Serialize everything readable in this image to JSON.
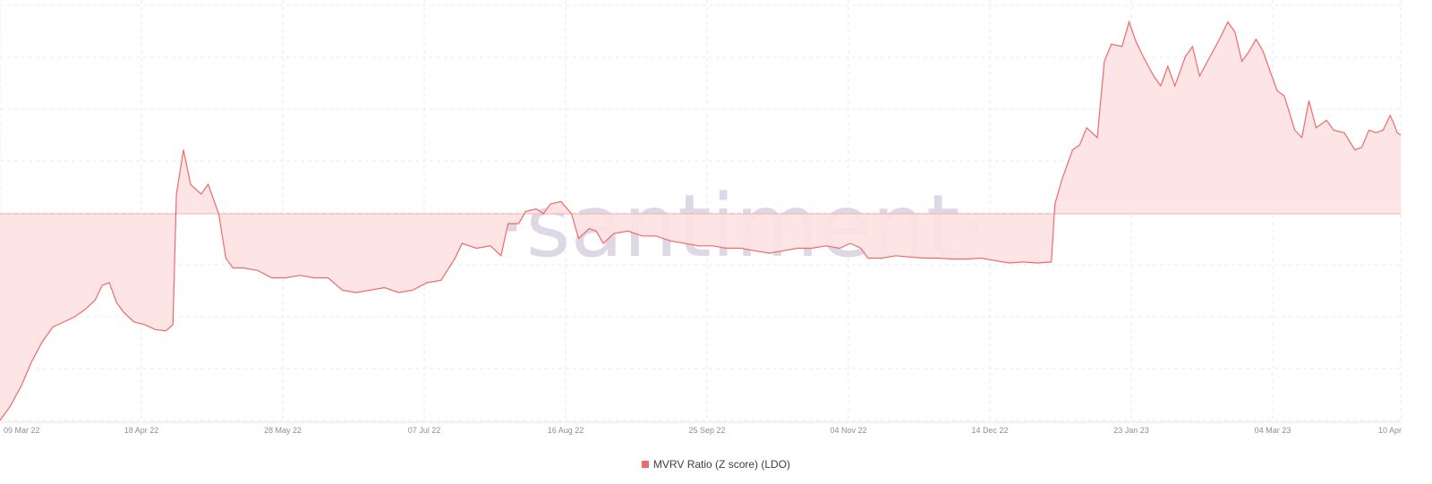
{
  "chart_data": {
    "type": "area",
    "title": "",
    "xlabel": "",
    "ylabel": "",
    "watermark": "·santiment·",
    "baseline_y": 0,
    "ylim": [
      -4.2,
      4.2
    ],
    "x_ticks": [
      "09 Mar 22",
      "18 Apr 22",
      "28 May 22",
      "07 Jul 22",
      "16 Aug 22",
      "25 Sep 22",
      "04 Nov 22",
      "14 Dec 22",
      "23 Jan 23",
      "04 Mar 23",
      "10 Apr"
    ],
    "x_range": [
      "2022-03-09",
      "2023-04-10"
    ],
    "grid": true,
    "legend_position": "bottom-center",
    "series": [
      {
        "name": "MVRV Ratio (Z score) (LDO)",
        "color": "#f06a6a",
        "fill": "#fde2e2",
        "points": [
          [
            "2022-03-09",
            -4.2
          ],
          [
            "2022-03-12",
            -3.9
          ],
          [
            "2022-03-15",
            -3.5
          ],
          [
            "2022-03-18",
            -3.0
          ],
          [
            "2022-03-21",
            -2.6
          ],
          [
            "2022-03-24",
            -2.3
          ],
          [
            "2022-03-27",
            -2.2
          ],
          [
            "2022-03-30",
            -2.1
          ],
          [
            "2022-04-02",
            -1.95
          ],
          [
            "2022-04-05",
            -1.75
          ],
          [
            "2022-04-07",
            -1.45
          ],
          [
            "2022-04-09",
            -1.4
          ],
          [
            "2022-04-11",
            -1.8
          ],
          [
            "2022-04-13",
            -2.0
          ],
          [
            "2022-04-16",
            -2.2
          ],
          [
            "2022-04-19",
            -2.25
          ],
          [
            "2022-04-22",
            -2.35
          ],
          [
            "2022-04-25",
            -2.38
          ],
          [
            "2022-04-27",
            -2.25
          ],
          [
            "2022-04-28",
            0.4
          ],
          [
            "2022-04-30",
            1.3
          ],
          [
            "2022-05-02",
            0.6
          ],
          [
            "2022-05-05",
            0.4
          ],
          [
            "2022-05-07",
            0.6
          ],
          [
            "2022-05-10",
            0.0
          ],
          [
            "2022-05-12",
            -0.9
          ],
          [
            "2022-05-14",
            -1.1
          ],
          [
            "2022-05-17",
            -1.1
          ],
          [
            "2022-05-21",
            -1.15
          ],
          [
            "2022-05-25",
            -1.3
          ],
          [
            "2022-05-29",
            -1.3
          ],
          [
            "2022-06-02",
            -1.25
          ],
          [
            "2022-06-06",
            -1.3
          ],
          [
            "2022-06-10",
            -1.3
          ],
          [
            "2022-06-14",
            -1.55
          ],
          [
            "2022-06-18",
            -1.6
          ],
          [
            "2022-06-22",
            -1.55
          ],
          [
            "2022-06-26",
            -1.5
          ],
          [
            "2022-06-30",
            -1.6
          ],
          [
            "2022-07-04",
            -1.55
          ],
          [
            "2022-07-08",
            -1.4
          ],
          [
            "2022-07-12",
            -1.35
          ],
          [
            "2022-07-16",
            -0.9
          ],
          [
            "2022-07-18",
            -0.6
          ],
          [
            "2022-07-22",
            -0.7
          ],
          [
            "2022-07-26",
            -0.65
          ],
          [
            "2022-07-29",
            -0.85
          ],
          [
            "2022-07-31",
            -0.2
          ],
          [
            "2022-08-03",
            -0.2
          ],
          [
            "2022-08-05",
            0.05
          ],
          [
            "2022-08-08",
            0.1
          ],
          [
            "2022-08-10",
            0.0
          ],
          [
            "2022-08-12",
            0.2
          ],
          [
            "2022-08-15",
            0.25
          ],
          [
            "2022-08-18",
            0.0
          ],
          [
            "2022-08-20",
            -0.5
          ],
          [
            "2022-08-23",
            -0.3
          ],
          [
            "2022-08-25",
            -0.35
          ],
          [
            "2022-08-27",
            -0.6
          ],
          [
            "2022-08-30",
            -0.4
          ],
          [
            "2022-09-03",
            -0.35
          ],
          [
            "2022-09-07",
            -0.45
          ],
          [
            "2022-09-11",
            -0.45
          ],
          [
            "2022-09-15",
            -0.55
          ],
          [
            "2022-09-19",
            -0.6
          ],
          [
            "2022-09-23",
            -0.65
          ],
          [
            "2022-09-27",
            -0.65
          ],
          [
            "2022-10-01",
            -0.7
          ],
          [
            "2022-10-05",
            -0.7
          ],
          [
            "2022-10-09",
            -0.75
          ],
          [
            "2022-10-13",
            -0.8
          ],
          [
            "2022-10-17",
            -0.75
          ],
          [
            "2022-10-21",
            -0.7
          ],
          [
            "2022-10-25",
            -0.7
          ],
          [
            "2022-10-29",
            -0.65
          ],
          [
            "2022-11-02",
            -0.7
          ],
          [
            "2022-11-05",
            -0.6
          ],
          [
            "2022-11-08",
            -0.7
          ],
          [
            "2022-11-10",
            -0.9
          ],
          [
            "2022-11-14",
            -0.9
          ],
          [
            "2022-11-18",
            -0.85
          ],
          [
            "2022-11-22",
            -0.88
          ],
          [
            "2022-11-26",
            -0.9
          ],
          [
            "2022-11-30",
            -0.9
          ],
          [
            "2022-12-04",
            -0.92
          ],
          [
            "2022-12-08",
            -0.92
          ],
          [
            "2022-12-12",
            -0.9
          ],
          [
            "2022-12-16",
            -0.95
          ],
          [
            "2022-12-20",
            -1.0
          ],
          [
            "2022-12-24",
            -0.98
          ],
          [
            "2022-12-28",
            -1.0
          ],
          [
            "2023-01-01",
            -0.98
          ],
          [
            "2023-01-02",
            0.2
          ],
          [
            "2023-01-04",
            0.7
          ],
          [
            "2023-01-07",
            1.3
          ],
          [
            "2023-01-09",
            1.4
          ],
          [
            "2023-01-11",
            1.75
          ],
          [
            "2023-01-14",
            1.55
          ],
          [
            "2023-01-16",
            3.1
          ],
          [
            "2023-01-18",
            3.45
          ],
          [
            "2023-01-21",
            3.4
          ],
          [
            "2023-01-23",
            3.9
          ],
          [
            "2023-01-25",
            3.5
          ],
          [
            "2023-01-27",
            3.2
          ],
          [
            "2023-01-30",
            2.8
          ],
          [
            "2023-02-01",
            2.6
          ],
          [
            "2023-02-03",
            3.0
          ],
          [
            "2023-02-05",
            2.6
          ],
          [
            "2023-02-08",
            3.2
          ],
          [
            "2023-02-10",
            3.4
          ],
          [
            "2023-02-12",
            2.8
          ],
          [
            "2023-02-15",
            3.2
          ],
          [
            "2023-02-18",
            3.6
          ],
          [
            "2023-02-20",
            3.9
          ],
          [
            "2023-02-22",
            3.7
          ],
          [
            "2023-02-24",
            3.1
          ],
          [
            "2023-02-26",
            3.3
          ],
          [
            "2023-02-28",
            3.55
          ],
          [
            "2023-03-02",
            3.3
          ],
          [
            "2023-03-04",
            2.9
          ],
          [
            "2023-03-06",
            2.5
          ],
          [
            "2023-03-08",
            2.4
          ],
          [
            "2023-03-11",
            1.7
          ],
          [
            "2023-03-13",
            1.55
          ],
          [
            "2023-03-15",
            2.3
          ],
          [
            "2023-03-17",
            1.75
          ],
          [
            "2023-03-20",
            1.9
          ],
          [
            "2023-03-22",
            1.7
          ],
          [
            "2023-03-25",
            1.65
          ],
          [
            "2023-03-28",
            1.3
          ],
          [
            "2023-03-30",
            1.35
          ],
          [
            "2023-04-01",
            1.7
          ],
          [
            "2023-04-03",
            1.65
          ],
          [
            "2023-04-05",
            1.7
          ],
          [
            "2023-04-07",
            2.0
          ],
          [
            "2023-04-08",
            1.85
          ],
          [
            "2023-04-09",
            1.65
          ],
          [
            "2023-04-10",
            1.6
          ]
        ]
      }
    ]
  }
}
